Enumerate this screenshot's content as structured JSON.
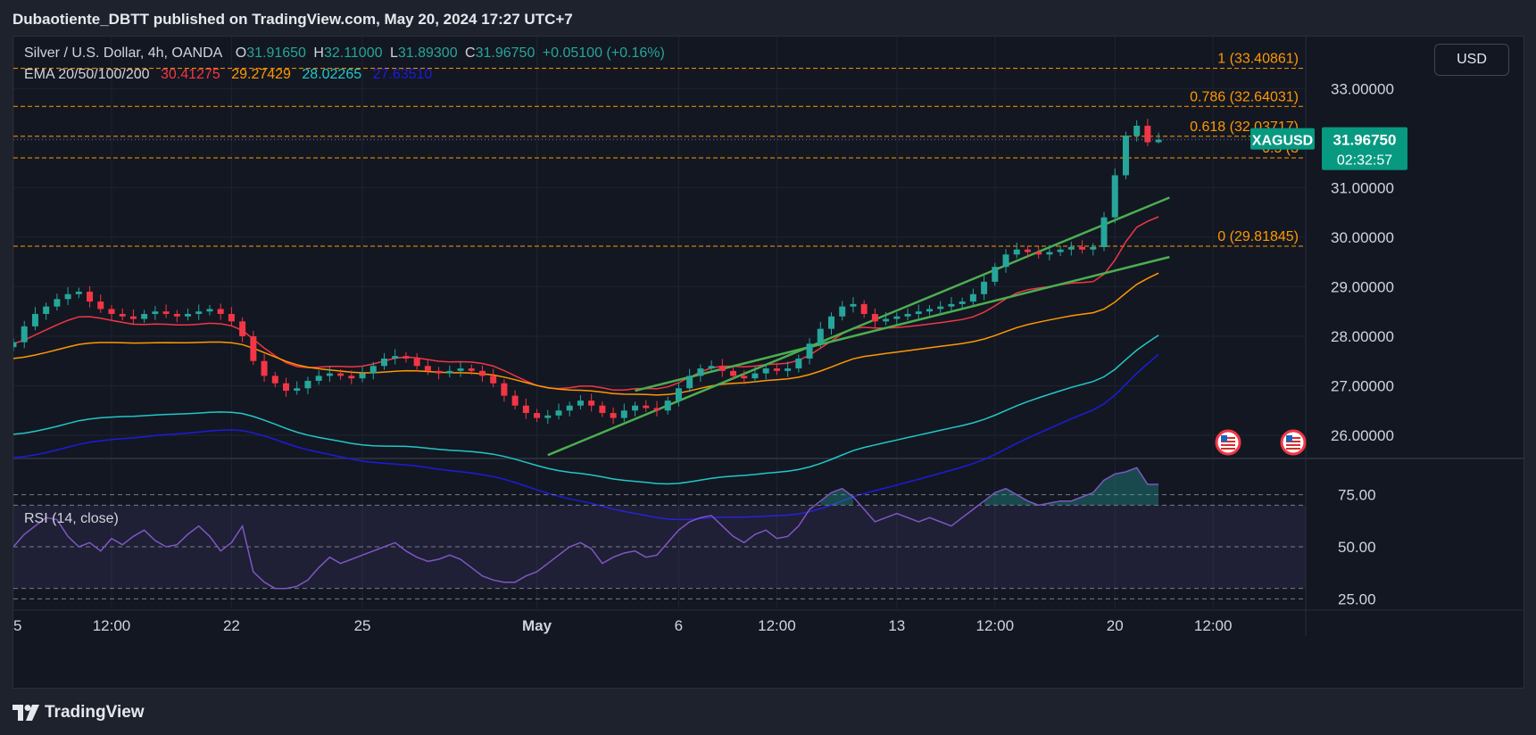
{
  "header": {
    "publisher_text": "Dubaotiente_DBTT published on TradingView.com, May 20, 2024 17:27 UTC+7"
  },
  "legend": {
    "symbol": "Silver / U.S. Dollar, 4h, OANDA",
    "o_label": "O",
    "o_value": "31.91650",
    "h_label": "H",
    "h_value": "32.11000",
    "l_label": "L",
    "l_value": "31.89300",
    "c_label": "C",
    "c_value": "31.96750",
    "change": "+0.05100 (+0.16%)",
    "ema_label": "EMA 20/50/100/200",
    "ema20": "30.41275",
    "ema50": "29.27429",
    "ema100": "28.02265",
    "ema200": "27.63510"
  },
  "currency_button": "USD",
  "rsi_label": "RSI (14, close)",
  "footer": {
    "brand": "TradingView",
    "logo_icon": "tradingview-logo-icon"
  },
  "colors": {
    "up": "#26a69a",
    "down": "#f23645",
    "ema20": "#f23645",
    "ema50": "#ff9800",
    "ema100": "#22c7c7",
    "ema200": "#1c1cdb",
    "fib": "#ff9800",
    "channel": "#4caf50",
    "rsi": "#7e57c2",
    "price_label": "#089981"
  },
  "chart_data": [
    {
      "type": "candlestick",
      "title": "Silver / U.S. Dollar, 4h, OANDA",
      "ylim": [
        25.55,
        34.05
      ],
      "y_ticks": [
        26,
        27,
        28,
        29,
        30,
        31,
        32,
        33
      ],
      "y_tick_labels": [
        "26.00000",
        "27.00000",
        "28.00000",
        "29.00000",
        "30.00000",
        "31.00000",
        "32.00000",
        "33.00000"
      ],
      "x_tick_labels": [
        {
          "label": "5",
          "bar": 0
        },
        {
          "label": "12:00",
          "bar": 9
        },
        {
          "label": "22",
          "bar": 20
        },
        {
          "label": "25",
          "bar": 32
        },
        {
          "label": "May",
          "bar": 48
        },
        {
          "label": "6",
          "bar": 61
        },
        {
          "label": "12:00",
          "bar": 70
        },
        {
          "label": "13",
          "bar": 81
        },
        {
          "label": "12:00",
          "bar": 90
        },
        {
          "label": "20",
          "bar": 101
        },
        {
          "label": "12:00",
          "bar": 110
        }
      ],
      "close": [
        27.88,
        28.2,
        28.45,
        28.6,
        28.75,
        28.85,
        28.9,
        28.7,
        28.55,
        28.45,
        28.4,
        28.35,
        28.45,
        28.5,
        28.45,
        28.4,
        28.45,
        28.5,
        28.55,
        28.45,
        28.3,
        28.0,
        27.5,
        27.2,
        27.05,
        26.9,
        26.95,
        27.1,
        27.2,
        27.25,
        27.2,
        27.15,
        27.25,
        27.4,
        27.55,
        27.6,
        27.55,
        27.4,
        27.3,
        27.25,
        27.3,
        27.35,
        27.3,
        27.2,
        27.05,
        26.8,
        26.6,
        26.45,
        26.35,
        26.4,
        26.5,
        26.6,
        26.7,
        26.6,
        26.45,
        26.35,
        26.5,
        26.6,
        26.55,
        26.5,
        26.7,
        26.95,
        27.2,
        27.35,
        27.4,
        27.3,
        27.2,
        27.15,
        27.25,
        27.35,
        27.3,
        27.35,
        27.55,
        27.85,
        28.15,
        28.4,
        28.6,
        28.65,
        28.45,
        28.3,
        28.35,
        28.4,
        28.45,
        28.5,
        28.55,
        28.6,
        28.65,
        28.7,
        28.85,
        29.1,
        29.4,
        29.65,
        29.75,
        29.7,
        29.65,
        29.7,
        29.75,
        29.8,
        29.75,
        29.8,
        30.4,
        31.25,
        32.05,
        32.25,
        31.9165,
        31.9675
      ],
      "last_bar": {
        "open": 31.9165,
        "high": 32.11,
        "low": 31.893,
        "close": 31.9675
      },
      "ema_series": [
        {
          "name": "EMA 20",
          "start": 27.85,
          "end": 30.41275
        },
        {
          "name": "EMA 50",
          "start": 27.55,
          "end": 29.27429
        },
        {
          "name": "EMA 100",
          "start": 26.02,
          "end": 28.02265
        },
        {
          "name": "EMA 200",
          "start": 25.55,
          "end": 27.6351
        }
      ],
      "fibonacci_levels": [
        {
          "ratio": "1",
          "value": 33.40861,
          "label": "1 (33.40861)"
        },
        {
          "ratio": "0.786",
          "value": 32.64031,
          "label": "0.786 (32.64031)"
        },
        {
          "ratio": "0.618",
          "value": 32.03717,
          "label": "0.618 (32.03717)"
        },
        {
          "ratio": "0.5",
          "value": 31.6,
          "label": "0.5 (3"
        },
        {
          "ratio": "0",
          "value": 29.81845,
          "label": "0 (29.81845)"
        }
      ],
      "channel_lines": [
        {
          "from": {
            "bar": 49,
            "value": 25.6
          },
          "to": {
            "bar": 106,
            "value": 30.8
          }
        },
        {
          "from": {
            "bar": 57,
            "value": 26.9
          },
          "to": {
            "bar": 106,
            "value": 29.6
          }
        }
      ],
      "price_label": {
        "symbol": "XAGUSD",
        "value": "31.96750",
        "countdown": "02:32:57"
      }
    },
    {
      "type": "line",
      "title": "RSI (14, close)",
      "ylim": [
        20,
        92
      ],
      "y_ticks": [
        25,
        50,
        75
      ],
      "y_tick_labels": [
        "25.00",
        "50.00",
        "75.00"
      ],
      "band": [
        30,
        70
      ],
      "overbought": 70,
      "values": [
        50,
        56,
        60,
        64,
        63,
        55,
        50,
        52,
        48,
        54,
        51,
        55,
        58,
        53,
        50,
        51,
        56,
        60,
        55,
        48,
        52,
        60,
        38,
        33,
        30,
        30,
        31,
        34,
        40,
        45,
        42,
        44,
        46,
        48,
        50,
        52,
        48,
        45,
        43,
        44,
        46,
        44,
        40,
        36,
        34,
        33,
        33,
        36,
        38,
        42,
        46,
        50,
        52,
        49,
        42,
        45,
        47,
        48,
        45,
        46,
        52,
        58,
        62,
        64,
        65,
        60,
        55,
        52,
        56,
        58,
        54,
        55,
        60,
        68,
        72,
        76,
        78,
        74,
        68,
        62,
        64,
        66,
        64,
        62,
        64,
        62,
        60,
        64,
        68,
        72,
        76,
        78,
        75,
        72,
        70,
        71,
        72,
        72,
        74,
        76,
        82,
        85,
        86,
        88,
        80,
        80
      ]
    }
  ]
}
